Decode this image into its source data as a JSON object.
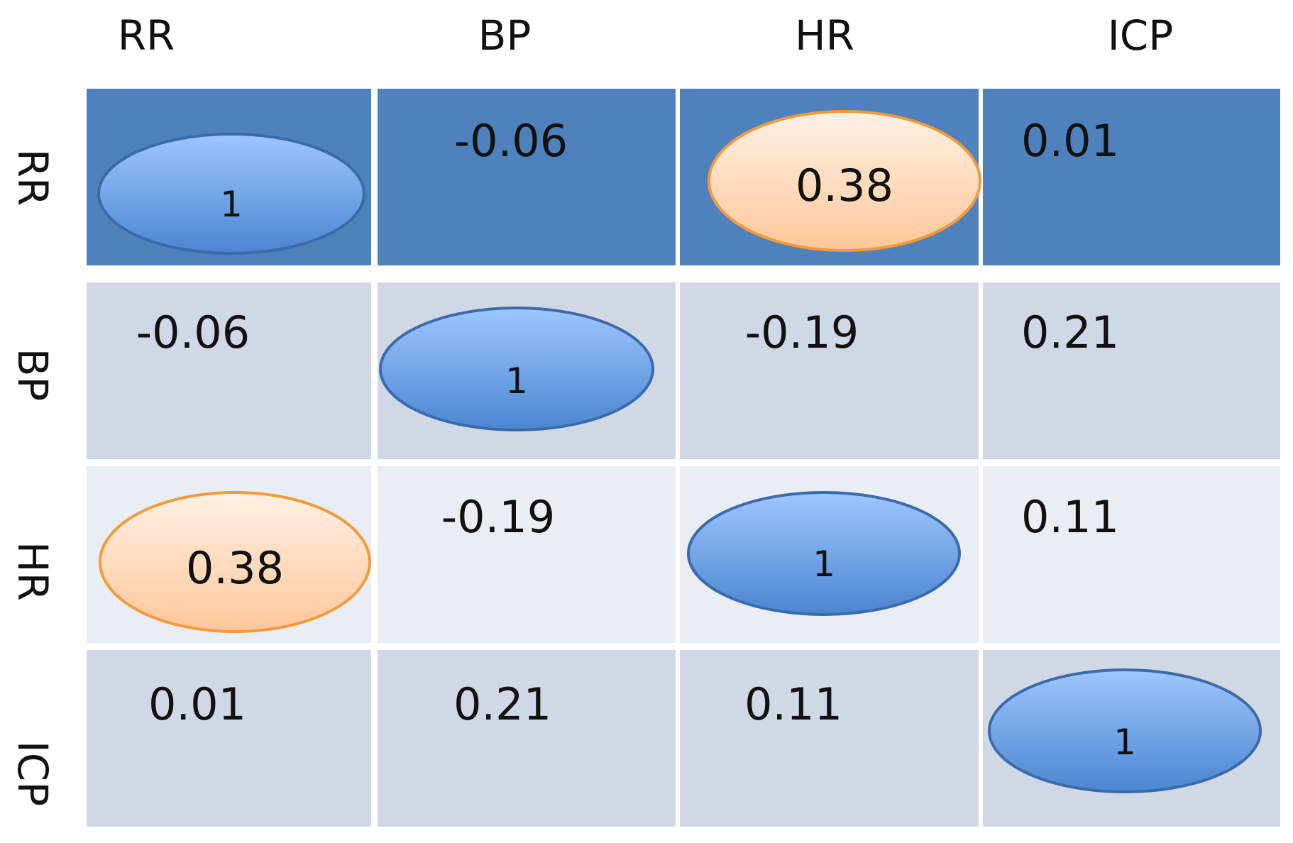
{
  "chart_data": {
    "type": "heatmap",
    "columns": [
      "RR",
      "BP",
      "HR",
      "ICP"
    ],
    "rows": [
      "RR",
      "BP",
      "HR",
      "ICP"
    ],
    "values": [
      [
        "1",
        "-0.06",
        "0.38",
        "0.01"
      ],
      [
        "-0.06",
        "1",
        "-0.19",
        "0.21"
      ],
      [
        "0.38",
        "-0.19",
        "1",
        "0.11"
      ],
      [
        "0.01",
        "0.21",
        "0.11",
        "1"
      ]
    ],
    "highlight": [
      [
        "diagonal",
        "",
        "orange",
        ""
      ],
      [
        "",
        "diagonal",
        "",
        ""
      ],
      [
        "orange",
        "",
        "diagonal",
        ""
      ],
      [
        "",
        "",
        "",
        "diagonal"
      ]
    ],
    "colors": {
      "row_bg": [
        "#4f81bd",
        "#d0d8e6",
        "#e9edf4",
        "#d0d8e6"
      ],
      "blue_ellipse_top": "#9fc6ff",
      "blue_ellipse_bottom": "#4a86d0",
      "blue_ellipse_stroke": "#3c6aa8",
      "orange_ellipse_top": "#fff1e4",
      "orange_ellipse_bottom": "#ffc79a",
      "orange_ellipse_stroke": "#f39a3b",
      "cell_gap": "#ffffff"
    }
  }
}
